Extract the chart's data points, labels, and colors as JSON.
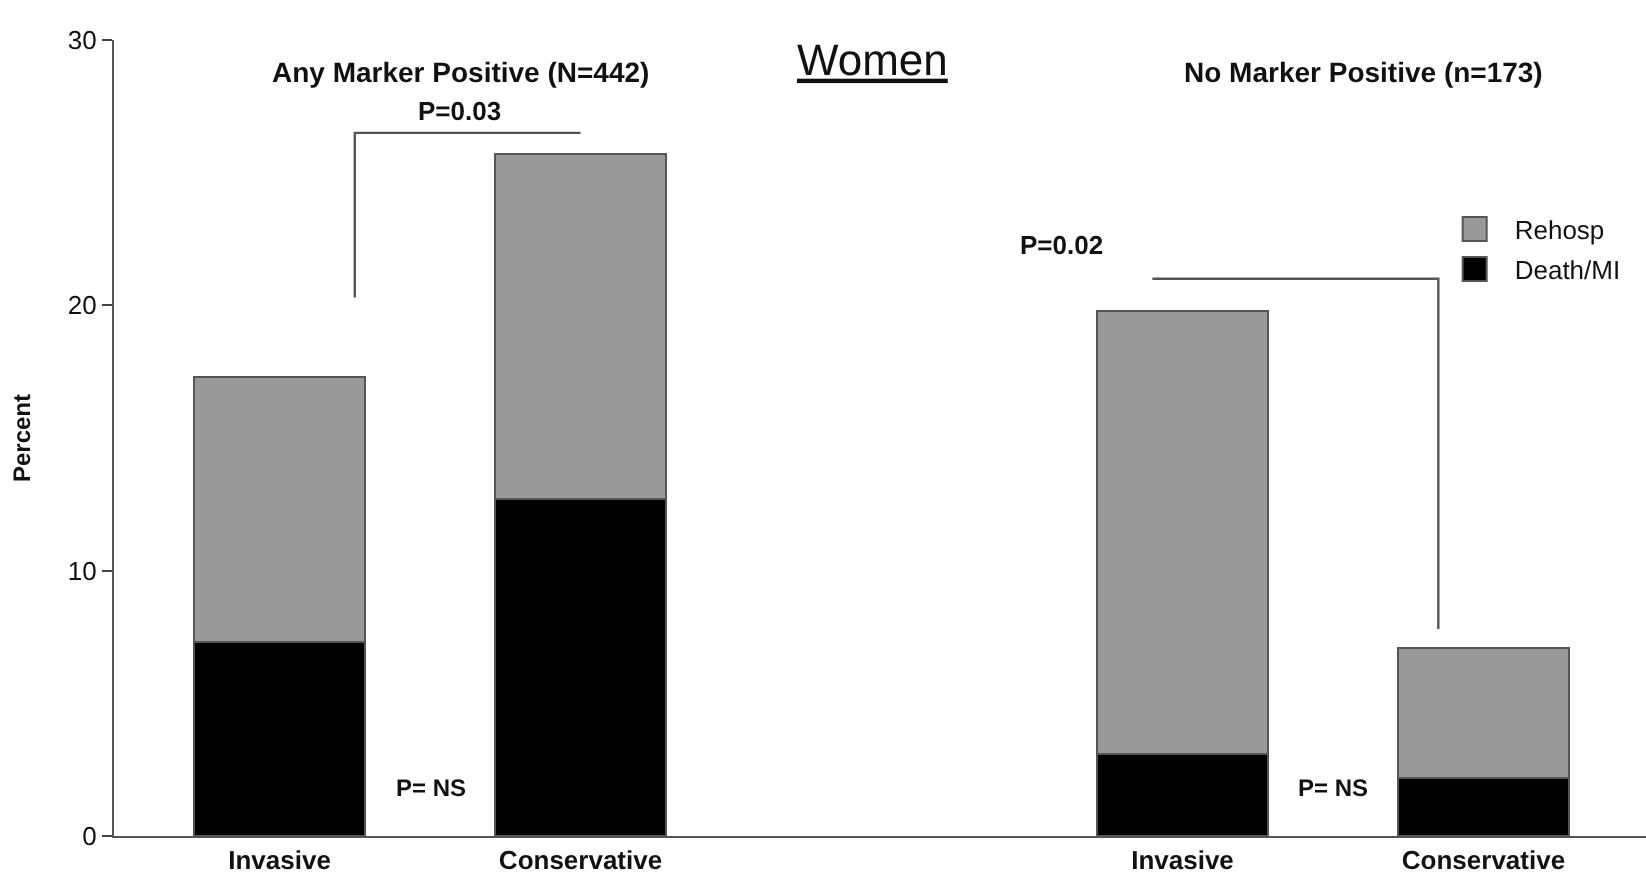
{
  "chart_data": {
    "type": "bar",
    "title": "Women",
    "ylabel": "Percent",
    "stacked": true,
    "categories": [
      "Invasive",
      "Conservative",
      null,
      "Invasive",
      "Conservative"
    ],
    "series": [
      {
        "name": "Death/MI",
        "color": "#000000",
        "values": [
          7.3,
          12.7,
          null,
          3.1,
          2.2
        ]
      },
      {
        "name": "Rehosp",
        "color": "#999999",
        "values": [
          10.0,
          13.0,
          null,
          16.7,
          4.9
        ]
      }
    ],
    "ylim": [
      0,
      30
    ],
    "yticks": [
      0,
      10,
      20,
      30
    ],
    "legend": "top right",
    "annotations": [
      "Any Marker Positive (N=442)",
      "P=0.03",
      "P= NS",
      "No Marker Positive (n=173)",
      "P=0.02",
      "P= NS"
    ]
  }
}
